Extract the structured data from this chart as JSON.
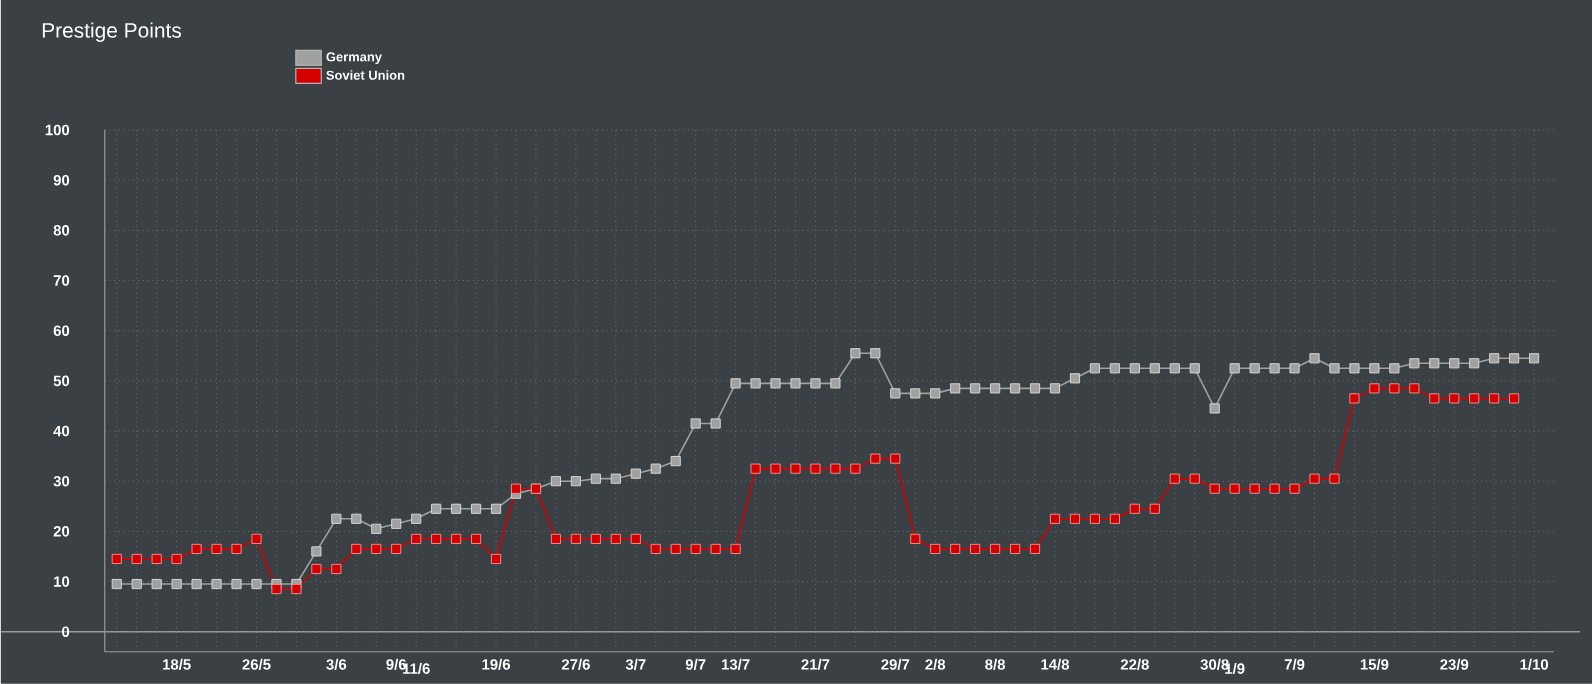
{
  "chart_data": {
    "type": "line",
    "title": "Prestige Points",
    "categories": [
      null,
      null,
      null,
      "18/5",
      null,
      null,
      null,
      "26/5",
      null,
      null,
      null,
      "3/6",
      null,
      null,
      "9/6",
      "11/6",
      null,
      null,
      null,
      "19/6",
      null,
      null,
      null,
      "27/6",
      null,
      null,
      "3/7",
      null,
      null,
      "9/7",
      null,
      "13/7",
      null,
      null,
      null,
      "21/7",
      null,
      null,
      null,
      "29/7",
      null,
      "2/8",
      null,
      null,
      "8/8",
      null,
      null,
      "14/8",
      null,
      null,
      null,
      "22/8",
      null,
      null,
      null,
      "30/8",
      "1/9",
      null,
      null,
      "7/9",
      null,
      null,
      null,
      "15/9",
      null,
      null,
      null,
      "23/9",
      null,
      null,
      null,
      "1/10"
    ],
    "series": [
      {
        "name": "Germany",
        "color": "#a0a0a0",
        "values": [
          9.5,
          9.5,
          9.5,
          9.5,
          9.5,
          9.5,
          9.5,
          9.5,
          9.5,
          9.5,
          16,
          22.5,
          22.5,
          20.5,
          21.5,
          22.5,
          24.5,
          24.5,
          24.5,
          24.5,
          27.5,
          28.5,
          30,
          30,
          30.5,
          30.5,
          31.5,
          32.5,
          34,
          41.5,
          41.5,
          49.5,
          49.5,
          49.5,
          49.5,
          49.5,
          49.5,
          55.5,
          55.5,
          47.5,
          47.5,
          47.5,
          48.5,
          48.5,
          48.5,
          48.5,
          48.5,
          48.5,
          50.5,
          52.5,
          52.5,
          52.5,
          52.5,
          52.5,
          52.5,
          44.5,
          52.5,
          52.5,
          52.5,
          52.5,
          54.5,
          52.5,
          52.5,
          52.5,
          52.5,
          53.5,
          53.5,
          53.5,
          53.5,
          54.5,
          54.5,
          54.5
        ]
      },
      {
        "name": "Soviet Union",
        "color": "#d40000",
        "values": [
          14.5,
          14.5,
          14.5,
          14.5,
          16.5,
          16.5,
          16.5,
          18.5,
          8.5,
          8.5,
          12.5,
          12.5,
          16.5,
          16.5,
          16.5,
          18.5,
          18.5,
          18.5,
          18.5,
          14.5,
          28.5,
          28.5,
          18.5,
          18.5,
          18.5,
          18.5,
          18.5,
          16.5,
          16.5,
          16.5,
          16.5,
          16.5,
          32.5,
          32.5,
          32.5,
          32.5,
          32.5,
          32.5,
          34.5,
          34.5,
          18.5,
          16.5,
          16.5,
          16.5,
          16.5,
          16.5,
          16.5,
          22.5,
          22.5,
          22.5,
          22.5,
          24.5,
          24.5,
          30.5,
          30.5,
          28.5,
          28.5,
          28.5,
          28.5,
          28.5,
          30.5,
          30.5,
          46.5,
          48.5,
          48.5,
          48.5,
          46.5,
          46.5,
          46.5,
          46.5,
          46.5,
          null
        ]
      }
    ],
    "ylim": [
      -4,
      100
    ],
    "yticks": [
      0,
      10,
      20,
      30,
      40,
      50,
      60,
      70,
      80,
      90,
      100
    ],
    "grid": true,
    "legend": "top left",
    "marker": "square",
    "line_style": "solid"
  }
}
